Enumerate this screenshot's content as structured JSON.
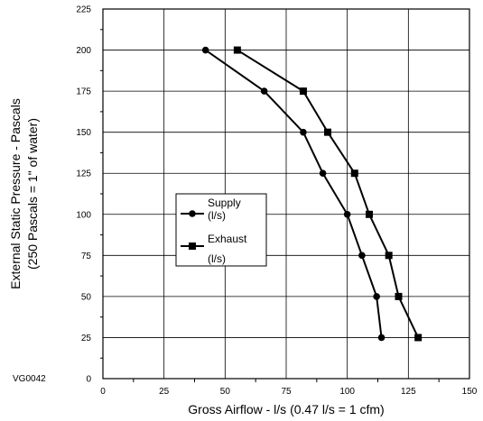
{
  "code_label": "VG0042",
  "chart_data": {
    "type": "line",
    "title": "",
    "xlabel": "Gross Airflow - l/s (0.47 l/s = 1 cfm)",
    "ylabel_line1": "External Static Pressure - Pascals",
    "ylabel_line2": "(250 Pascals = 1\" of water)",
    "xlim": [
      0,
      150
    ],
    "ylim": [
      0,
      225
    ],
    "x_ticks": [
      0,
      25,
      50,
      75,
      100,
      125,
      150
    ],
    "y_ticks": [
      0,
      25,
      50,
      75,
      100,
      125,
      150,
      175,
      200,
      225
    ],
    "grid": true,
    "legend_position": "center-left",
    "series": [
      {
        "name_line1": "Supply",
        "name_line2": "(l/s)",
        "marker": "circle",
        "points": [
          [
            42,
            200
          ],
          [
            66,
            175
          ],
          [
            82,
            150
          ],
          [
            90,
            125
          ],
          [
            100,
            100
          ],
          [
            106,
            75
          ],
          [
            112,
            50
          ],
          [
            114,
            25
          ]
        ]
      },
      {
        "name_line1": "Exhaust",
        "name_line2": "(l/s)",
        "marker": "square",
        "points": [
          [
            55,
            200
          ],
          [
            82,
            175
          ],
          [
            92,
            150
          ],
          [
            103,
            125
          ],
          [
            109,
            100
          ],
          [
            117,
            75
          ],
          [
            121,
            50
          ],
          [
            129,
            25
          ]
        ]
      }
    ]
  }
}
